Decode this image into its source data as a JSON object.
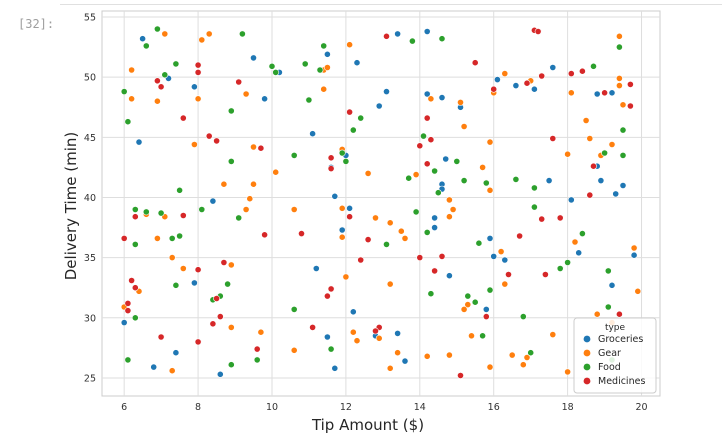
{
  "cell": {
    "prompt": "[32]:"
  },
  "chart_data": {
    "type": "scatter",
    "xlabel": "Tip Amount ($)",
    "ylabel": "Delivery Time (min)",
    "xlim": [
      5.4,
      20.5
    ],
    "ylim": [
      23.5,
      55.5
    ],
    "xticks": [
      6,
      8,
      10,
      12,
      14,
      16,
      18,
      20
    ],
    "yticks": [
      25,
      30,
      35,
      40,
      45,
      50,
      55
    ],
    "grid": true,
    "legend": {
      "title": "type",
      "placement": "bottom-right"
    },
    "series": [
      {
        "name": "Groceries",
        "color": "#1f77b4",
        "points": [
          [
            6.5,
            53.2
          ],
          [
            7.2,
            49.9
          ],
          [
            7.9,
            49.2
          ],
          [
            6.4,
            44.6
          ],
          [
            8.4,
            39.7
          ],
          [
            6.0,
            29.6
          ],
          [
            6.8,
            25.9
          ],
          [
            7.4,
            27.1
          ],
          [
            8.6,
            25.3
          ],
          [
            7.9,
            32.9
          ],
          [
            9.5,
            51.6
          ],
          [
            10.2,
            50.4
          ],
          [
            9.8,
            48.2
          ],
          [
            11.5,
            51.9
          ],
          [
            12.3,
            51.2
          ],
          [
            12.9,
            47.6
          ],
          [
            13.1,
            48.8
          ],
          [
            13.4,
            53.6
          ],
          [
            14.2,
            53.8
          ],
          [
            11.1,
            45.3
          ],
          [
            12.0,
            43.5
          ],
          [
            11.6,
            42.5
          ],
          [
            11.7,
            40.1
          ],
          [
            12.1,
            39.1
          ],
          [
            11.9,
            37.3
          ],
          [
            11.2,
            34.1
          ],
          [
            12.2,
            30.5
          ],
          [
            11.5,
            28.4
          ],
          [
            11.7,
            25.8
          ],
          [
            12.8,
            28.5
          ],
          [
            13.4,
            28.7
          ],
          [
            13.6,
            26.4
          ],
          [
            14.2,
            48.6
          ],
          [
            14.6,
            48.3
          ],
          [
            15.1,
            47.5
          ],
          [
            14.6,
            41.1
          ],
          [
            14.7,
            43.2
          ],
          [
            14.6,
            40.7
          ],
          [
            15.9,
            36.6
          ],
          [
            14.4,
            38.3
          ],
          [
            14.4,
            37.5
          ],
          [
            14.8,
            33.5
          ],
          [
            16.1,
            49.8
          ],
          [
            16.6,
            49.3
          ],
          [
            17.1,
            49.0
          ],
          [
            17.6,
            50.8
          ],
          [
            16.0,
            35.1
          ],
          [
            16.3,
            34.8
          ],
          [
            15.8,
            30.7
          ],
          [
            18.1,
            39.8
          ],
          [
            17.5,
            41.4
          ],
          [
            18.3,
            35.4
          ],
          [
            18.8,
            48.6
          ],
          [
            19.2,
            48.7
          ],
          [
            18.8,
            42.6
          ],
          [
            18.9,
            41.4
          ],
          [
            19.3,
            40.3
          ],
          [
            19.5,
            41.0
          ],
          [
            19.2,
            32.7
          ],
          [
            19.8,
            35.2
          ]
        ]
      },
      {
        "name": "Gear",
        "color": "#ff7f0e",
        "points": [
          [
            6.2,
            50.6
          ],
          [
            6.2,
            48.2
          ],
          [
            7.1,
            53.6
          ],
          [
            6.9,
            48.0
          ],
          [
            7.9,
            44.4
          ],
          [
            8.1,
            53.1
          ],
          [
            8.3,
            53.6
          ],
          [
            8.0,
            48.2
          ],
          [
            8.7,
            41.1
          ],
          [
            7.1,
            38.4
          ],
          [
            6.6,
            38.6
          ],
          [
            6.9,
            36.6
          ],
          [
            7.3,
            35.0
          ],
          [
            7.6,
            34.1
          ],
          [
            6.4,
            32.2
          ],
          [
            6.0,
            30.9
          ],
          [
            7.3,
            25.6
          ],
          [
            8.9,
            29.2
          ],
          [
            8.9,
            34.4
          ],
          [
            9.3,
            48.6
          ],
          [
            9.5,
            44.2
          ],
          [
            9.5,
            41.1
          ],
          [
            9.4,
            39.9
          ],
          [
            9.3,
            39.0
          ],
          [
            9.7,
            28.8
          ],
          [
            10.1,
            42.1
          ],
          [
            10.6,
            39.0
          ],
          [
            10.6,
            27.3
          ],
          [
            11.4,
            50.6
          ],
          [
            11.5,
            50.8
          ],
          [
            11.4,
            49.0
          ],
          [
            12.1,
            52.7
          ],
          [
            11.9,
            44.0
          ],
          [
            11.9,
            39.1
          ],
          [
            11.9,
            36.7
          ],
          [
            12.0,
            33.4
          ],
          [
            12.2,
            28.8
          ],
          [
            12.3,
            28.1
          ],
          [
            12.6,
            42.0
          ],
          [
            12.8,
            38.3
          ],
          [
            13.2,
            37.9
          ],
          [
            13.2,
            32.8
          ],
          [
            12.9,
            28.3
          ],
          [
            13.2,
            25.8
          ],
          [
            13.4,
            27.1
          ],
          [
            13.5,
            37.2
          ],
          [
            13.6,
            36.6
          ],
          [
            13.9,
            41.9
          ],
          [
            14.0,
            35.0
          ],
          [
            14.3,
            48.2
          ],
          [
            14.8,
            39.8
          ],
          [
            14.9,
            39.0
          ],
          [
            14.8,
            38.4
          ],
          [
            14.2,
            26.8
          ],
          [
            14.8,
            26.9
          ],
          [
            15.1,
            47.9
          ],
          [
            15.2,
            45.9
          ],
          [
            15.7,
            42.5
          ],
          [
            16.0,
            48.7
          ],
          [
            15.9,
            44.6
          ],
          [
            15.9,
            40.6
          ],
          [
            15.3,
            31.1
          ],
          [
            15.2,
            30.7
          ],
          [
            15.4,
            28.5
          ],
          [
            15.9,
            25.9
          ],
          [
            16.3,
            50.3
          ],
          [
            16.2,
            35.5
          ],
          [
            16.3,
            32.8
          ],
          [
            16.5,
            26.9
          ],
          [
            16.8,
            26.1
          ],
          [
            16.9,
            26.7
          ],
          [
            17.0,
            49.7
          ],
          [
            17.6,
            28.6
          ],
          [
            18.1,
            48.7
          ],
          [
            18.0,
            43.6
          ],
          [
            18.2,
            36.3
          ],
          [
            18.5,
            46.4
          ],
          [
            18.6,
            44.9
          ],
          [
            18.9,
            43.5
          ],
          [
            18.8,
            30.3
          ],
          [
            18.0,
            25.5
          ],
          [
            19.4,
            53.4
          ],
          [
            19.4,
            49.9
          ],
          [
            19.4,
            49.3
          ],
          [
            19.5,
            47.7
          ],
          [
            19.2,
            44.4
          ],
          [
            19.2,
            29.6
          ],
          [
            19.8,
            35.8
          ],
          [
            19.9,
            32.2
          ]
        ]
      },
      {
        "name": "Food",
        "color": "#2ca02c",
        "points": [
          [
            6.0,
            48.8
          ],
          [
            6.1,
            46.3
          ],
          [
            6.6,
            52.6
          ],
          [
            6.9,
            54.0
          ],
          [
            7.1,
            50.2
          ],
          [
            7.4,
            51.1
          ],
          [
            6.3,
            39.0
          ],
          [
            6.6,
            38.8
          ],
          [
            7.0,
            38.7
          ],
          [
            7.5,
            40.6
          ],
          [
            7.3,
            36.6
          ],
          [
            6.3,
            36.1
          ],
          [
            7.5,
            36.8
          ],
          [
            7.4,
            32.7
          ],
          [
            6.3,
            30.0
          ],
          [
            6.1,
            26.5
          ],
          [
            8.1,
            39.0
          ],
          [
            8.4,
            31.5
          ],
          [
            8.6,
            31.8
          ],
          [
            8.8,
            32.8
          ],
          [
            8.9,
            47.2
          ],
          [
            8.9,
            43.0
          ],
          [
            9.2,
            53.6
          ],
          [
            9.1,
            38.3
          ],
          [
            8.9,
            26.1
          ],
          [
            9.6,
            26.5
          ],
          [
            10.1,
            50.4
          ],
          [
            10.0,
            50.9
          ],
          [
            10.9,
            51.1
          ],
          [
            11.0,
            48.1
          ],
          [
            11.3,
            50.6
          ],
          [
            11.4,
            52.6
          ],
          [
            10.6,
            43.5
          ],
          [
            10.6,
            30.7
          ],
          [
            11.6,
            27.4
          ],
          [
            11.9,
            43.7
          ],
          [
            12.0,
            43.0
          ],
          [
            12.2,
            45.6
          ],
          [
            12.4,
            46.6
          ],
          [
            13.1,
            36.1
          ],
          [
            13.8,
            53.0
          ],
          [
            13.7,
            41.6
          ],
          [
            13.9,
            38.8
          ],
          [
            14.1,
            45.1
          ],
          [
            14.2,
            37.1
          ],
          [
            14.4,
            42.2
          ],
          [
            14.5,
            40.4
          ],
          [
            14.3,
            32.0
          ],
          [
            14.6,
            53.2
          ],
          [
            15.0,
            43.0
          ],
          [
            15.2,
            41.4
          ],
          [
            15.3,
            31.8
          ],
          [
            15.5,
            31.3
          ],
          [
            15.6,
            36.2
          ],
          [
            15.8,
            41.2
          ],
          [
            15.9,
            32.3
          ],
          [
            15.7,
            28.5
          ],
          [
            16.6,
            41.5
          ],
          [
            16.8,
            30.1
          ],
          [
            17.1,
            39.2
          ],
          [
            17.1,
            40.8
          ],
          [
            17.0,
            27.1
          ],
          [
            17.8,
            34.1
          ],
          [
            18.0,
            34.6
          ],
          [
            18.4,
            37.0
          ],
          [
            18.7,
            50.9
          ],
          [
            19.0,
            43.7
          ],
          [
            19.1,
            33.9
          ],
          [
            19.1,
            30.9
          ],
          [
            19.4,
            52.5
          ],
          [
            19.5,
            45.6
          ],
          [
            19.5,
            43.5
          ],
          [
            19.2,
            26.5
          ]
        ]
      },
      {
        "name": "Medicines",
        "color": "#d62728",
        "points": [
          [
            6.0,
            36.6
          ],
          [
            6.1,
            31.2
          ],
          [
            6.2,
            33.1
          ],
          [
            6.3,
            38.4
          ],
          [
            6.3,
            32.5
          ],
          [
            6.1,
            30.6
          ],
          [
            7.0,
            49.2
          ],
          [
            6.9,
            49.7
          ],
          [
            7.6,
            46.6
          ],
          [
            7.6,
            38.5
          ],
          [
            7.0,
            28.4
          ],
          [
            8.0,
            51.0
          ],
          [
            8.0,
            50.4
          ],
          [
            8.3,
            45.1
          ],
          [
            8.5,
            44.7
          ],
          [
            8.0,
            34.0
          ],
          [
            8.7,
            34.6
          ],
          [
            8.5,
            31.6
          ],
          [
            8.6,
            30.1
          ],
          [
            8.4,
            29.5
          ],
          [
            8.0,
            28.0
          ],
          [
            9.1,
            49.6
          ],
          [
            9.7,
            44.1
          ],
          [
            9.6,
            27.4
          ],
          [
            9.8,
            36.9
          ],
          [
            10.8,
            37.0
          ],
          [
            11.1,
            29.2
          ],
          [
            11.6,
            32.4
          ],
          [
            11.5,
            31.8
          ],
          [
            11.6,
            43.3
          ],
          [
            11.6,
            42.4
          ],
          [
            12.1,
            47.1
          ],
          [
            12.1,
            38.4
          ],
          [
            12.4,
            34.8
          ],
          [
            12.6,
            36.5
          ],
          [
            12.9,
            29.2
          ],
          [
            12.8,
            28.9
          ],
          [
            13.1,
            53.4
          ],
          [
            14.2,
            46.6
          ],
          [
            14.0,
            44.3
          ],
          [
            14.2,
            42.8
          ],
          [
            14.3,
            44.8
          ],
          [
            14.4,
            33.9
          ],
          [
            14.0,
            35.0
          ],
          [
            14.6,
            35.1
          ],
          [
            15.1,
            25.2
          ],
          [
            15.5,
            51.2
          ],
          [
            16.0,
            49.0
          ],
          [
            15.8,
            30.1
          ],
          [
            16.4,
            33.6
          ],
          [
            16.7,
            36.8
          ],
          [
            16.9,
            49.5
          ],
          [
            17.1,
            53.9
          ],
          [
            17.2,
            53.8
          ],
          [
            17.3,
            50.1
          ],
          [
            17.3,
            38.2
          ],
          [
            17.4,
            33.6
          ],
          [
            17.6,
            44.9
          ],
          [
            17.8,
            38.3
          ],
          [
            18.1,
            50.3
          ],
          [
            18.4,
            50.5
          ],
          [
            18.6,
            40.2
          ],
          [
            18.7,
            42.6
          ],
          [
            19.0,
            48.7
          ],
          [
            19.7,
            49.4
          ],
          [
            19.7,
            47.6
          ],
          [
            19.4,
            30.3
          ]
        ]
      }
    ]
  }
}
